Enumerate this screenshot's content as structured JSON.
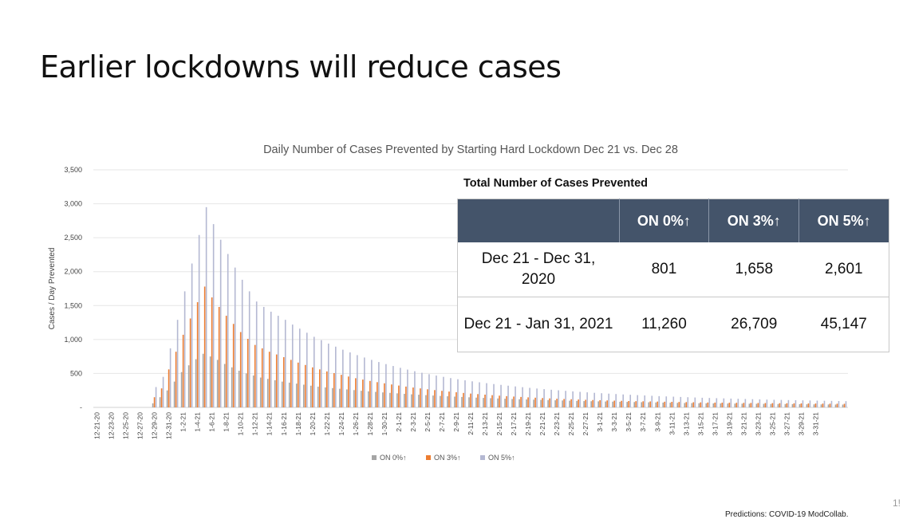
{
  "slide": {
    "title": "Earlier lockdowns will reduce cases",
    "source": "Predictions: COVID-19 ModCollab.",
    "page_number": "1!"
  },
  "colors": {
    "on0": "#a5a5a5",
    "on3": "#ed7d31",
    "on5": "#b4b8d2",
    "table_header": "#44546a",
    "grid": "#e6e6e6"
  },
  "table": {
    "caption": "Total Number of Cases Prevented",
    "headers": [
      "",
      "ON 0%↑",
      "ON 3%↑",
      "ON 5%↑"
    ],
    "rows": [
      [
        "Dec 21 - Dec 31, 2020",
        "801",
        "1,658",
        "2,601"
      ],
      [
        "Dec 21 - Jan 31, 2021",
        "11,260",
        "26,709",
        "45,147"
      ]
    ]
  },
  "chart_data": {
    "type": "bar",
    "title": "Daily Number of Cases Prevented by Starting Hard Lockdown Dec 21 vs. Dec 28",
    "xlabel": "",
    "ylabel": "Cases / Day Prevented",
    "ylim": [
      0,
      3500
    ],
    "yticks": [
      "-",
      "500",
      "1,000",
      "1,500",
      "2,000",
      "2,500",
      "3,000",
      "3,500"
    ],
    "grid": true,
    "legend_position": "bottom",
    "tick_labels": [
      "12-21-20",
      "12-23-20",
      "12-25-20",
      "12-27-20",
      "12-29-20",
      "12-31-20",
      "1-2-21",
      "1-4-21",
      "1-6-21",
      "1-8-21",
      "1-10-21",
      "1-12-21",
      "1-14-21",
      "1-16-21",
      "1-18-21",
      "1-20-21",
      "1-22-21",
      "1-24-21",
      "1-26-21",
      "1-28-21",
      "1-30-21",
      "2-1-21",
      "2-3-21",
      "2-5-21",
      "2-7-21",
      "2-9-21",
      "2-11-21",
      "2-13-21",
      "2-15-21",
      "2-17-21",
      "2-19-21",
      "2-21-21",
      "2-23-21",
      "2-25-21",
      "2-27-21",
      "3-1-21",
      "3-3-21",
      "3-5-21",
      "3-7-21",
      "3-9-21",
      "3-11-21",
      "3-13-21",
      "3-15-21",
      "3-17-21",
      "3-19-21",
      "3-21-21",
      "3-23-21",
      "3-25-21",
      "3-27-21",
      "3-29-21",
      "3-31-21"
    ],
    "series": [
      {
        "name": "ON 0%↑",
        "values": [
          0,
          0,
          0,
          0,
          0,
          0,
          0,
          0,
          60,
          150,
          250,
          380,
          520,
          620,
          710,
          790,
          750,
          700,
          640,
          590,
          540,
          500,
          470,
          440,
          420,
          400,
          380,
          365,
          350,
          335,
          320,
          305,
          295,
          285,
          275,
          265,
          255,
          245,
          237,
          229,
          221,
          214,
          207,
          200,
          193,
          187,
          181,
          175,
          169,
          164,
          159,
          154,
          149,
          144,
          140,
          136,
          132,
          128,
          124,
          120,
          117,
          114,
          111,
          108,
          105,
          102,
          99,
          96,
          93,
          91,
          89,
          87,
          85,
          83,
          81,
          79,
          77,
          75,
          73,
          71,
          69,
          67,
          65,
          63,
          61,
          60,
          59,
          58,
          57,
          56,
          55,
          54,
          53,
          52,
          51,
          50,
          49,
          48,
          47,
          46,
          45,
          44,
          43,
          42,
          41
        ]
      },
      {
        "name": "ON 3%↑",
        "values": [
          0,
          0,
          0,
          0,
          0,
          0,
          0,
          0,
          150,
          280,
          560,
          820,
          1070,
          1310,
          1550,
          1780,
          1620,
          1480,
          1350,
          1230,
          1110,
          1010,
          920,
          870,
          820,
          780,
          740,
          700,
          660,
          625,
          590,
          560,
          530,
          505,
          480,
          455,
          430,
          410,
          390,
          372,
          355,
          338,
          322,
          307,
          293,
          280,
          267,
          255,
          244,
          233,
          223,
          213,
          204,
          196,
          188,
          180,
          173,
          166,
          160,
          154,
          148,
          143,
          138,
          133,
          128,
          124,
          120,
          116,
          112,
          109,
          106,
          103,
          100,
          97,
          94,
          92,
          90,
          88,
          86,
          84,
          82,
          80,
          78,
          76,
          74,
          72,
          71,
          70,
          69,
          68,
          67,
          66,
          65,
          64,
          63,
          62,
          61,
          60,
          59,
          58,
          57,
          56,
          55,
          54,
          53
        ]
      },
      {
        "name": "ON 5%↑",
        "values": [
          0,
          0,
          0,
          0,
          0,
          0,
          0,
          0,
          300,
          450,
          870,
          1290,
          1710,
          2120,
          2540,
          2950,
          2700,
          2470,
          2260,
          2060,
          1880,
          1710,
          1560,
          1480,
          1410,
          1350,
          1290,
          1220,
          1160,
          1100,
          1040,
          990,
          940,
          895,
          850,
          810,
          770,
          735,
          700,
          668,
          638,
          610,
          583,
          557,
          533,
          510,
          489,
          469,
          450,
          432,
          415,
          399,
          384,
          370,
          357,
          344,
          332,
          320,
          309,
          298,
          288,
          278,
          269,
          260,
          252,
          244,
          236,
          229,
          222,
          215,
          209,
          203,
          197,
          191,
          186,
          181,
          176,
          171,
          166,
          162,
          158,
          154,
          150,
          146,
          142,
          139,
          136,
          133,
          130,
          127,
          124,
          121,
          118,
          115,
          112,
          110,
          108,
          106,
          104,
          102,
          100,
          98,
          96,
          94,
          92
        ]
      }
    ]
  }
}
